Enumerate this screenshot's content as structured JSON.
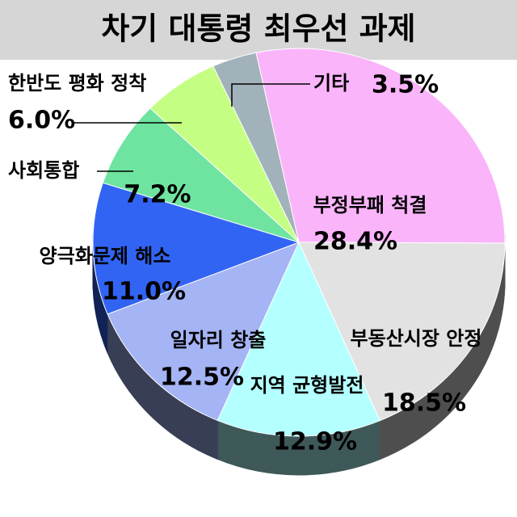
{
  "chart_data": {
    "type": "pie",
    "title": "차기 대통령 최우선 과제",
    "categories": [
      "부정부패 척결",
      "부동산시장 안정",
      "지역 균형발전",
      "일자리 창출",
      "양극화문제 해소",
      "사회통합",
      "한반도 평화 정착",
      "기타"
    ],
    "values": [
      28.4,
      18.5,
      12.9,
      12.5,
      11.0,
      7.2,
      6.0,
      3.5
    ],
    "value_labels": [
      "28.4%",
      "18.5%",
      "12.9%",
      "12.5%",
      "11.0%",
      "7.2%",
      "6.0%",
      "3.5%"
    ],
    "colors": [
      "#fab4fa",
      "#e2e2e2",
      "#b4ffff",
      "#a4b4f4",
      "#3264f4",
      "#6ee4a0",
      "#c4ff84",
      "#a2b2ba"
    ]
  }
}
